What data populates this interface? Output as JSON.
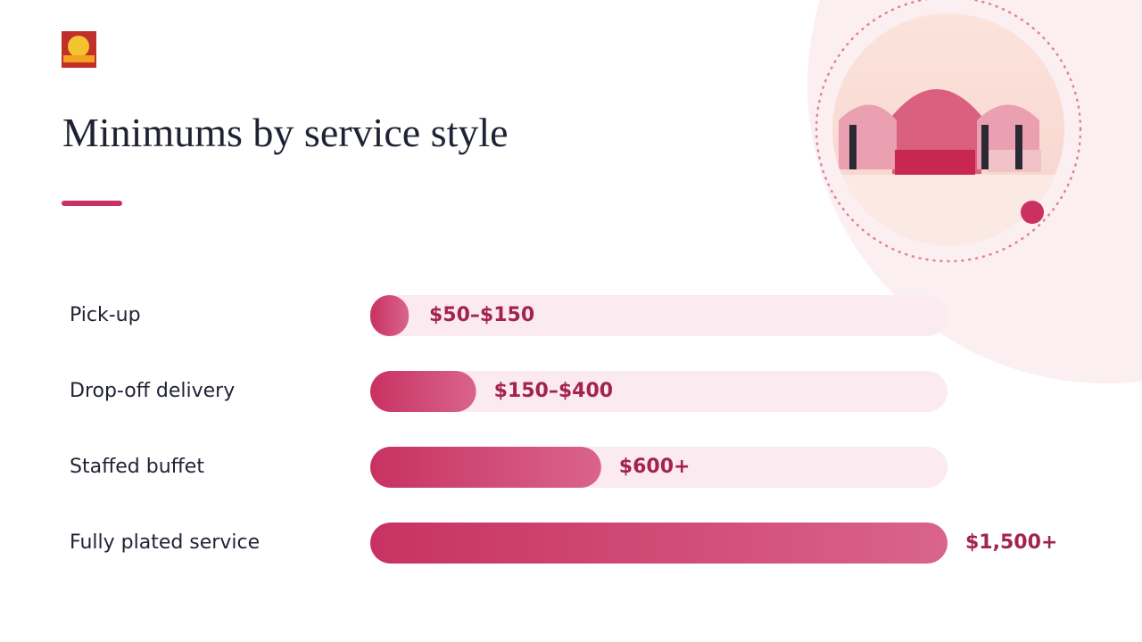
{
  "chart_data": {
    "type": "bar",
    "orientation": "horizontal",
    "title": "Minimums by service style",
    "categories": [
      "Pick-up",
      "Drop-off delivery",
      "Staffed buffet",
      "Fully plated service"
    ],
    "values": [
      100,
      275,
      600,
      1500
    ],
    "value_labels": [
      "$50–$150",
      "$150–$400",
      "$600+",
      "$1,500+"
    ],
    "color": "#c83262",
    "xlim": [
      0,
      1500
    ]
  }
}
